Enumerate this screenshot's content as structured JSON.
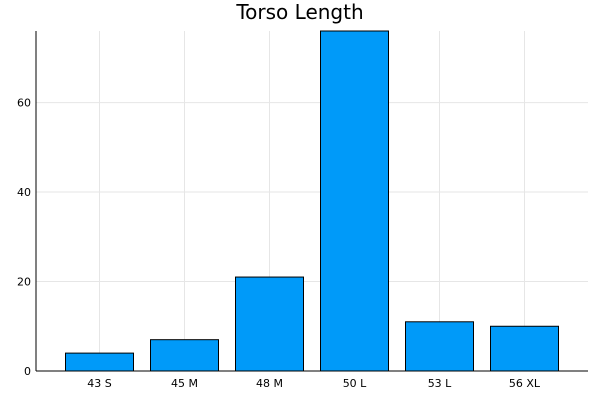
{
  "chart_data": {
    "type": "bar",
    "title": "Torso Length",
    "xlabel": "",
    "ylabel": "",
    "categories": [
      "43 S",
      "45 M",
      "48 M",
      "50 L",
      "53 L",
      "56 XL"
    ],
    "values": [
      4,
      7,
      21,
      76,
      11,
      10
    ],
    "ylim": [
      0,
      76
    ],
    "yticks": [
      0,
      20,
      40,
      60
    ],
    "grid": true,
    "legend": "none",
    "colors": {
      "bar": "#009af9",
      "grid": "#e6e6e6",
      "axis": "#000000"
    }
  }
}
